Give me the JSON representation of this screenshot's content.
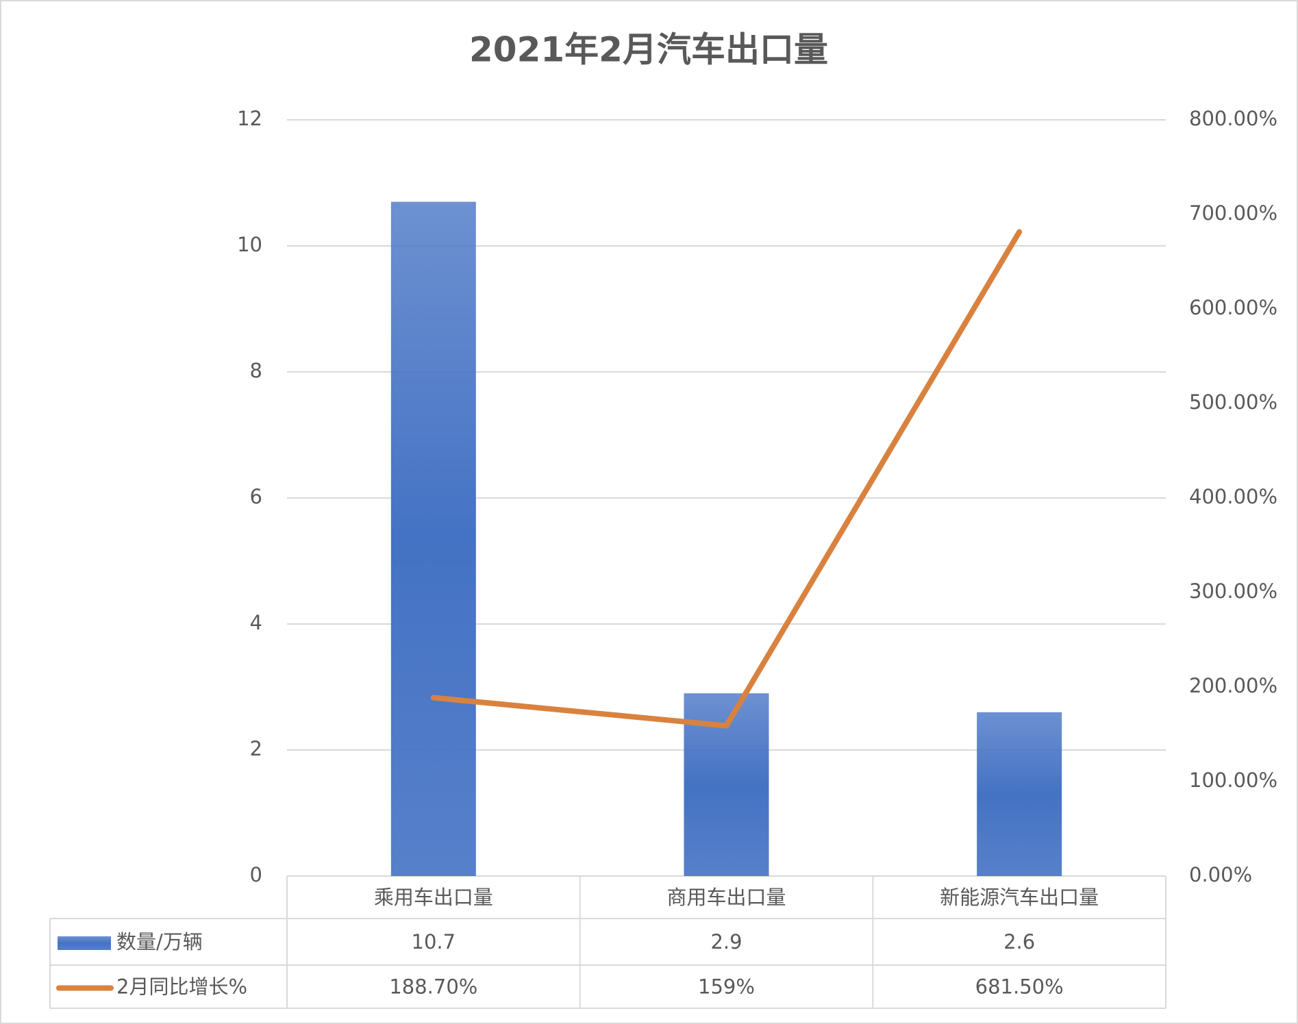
{
  "chart_data": {
    "type": "bar",
    "title": "2021年2月汽车出口量",
    "categories": [
      "乘用车出口量",
      "商用车出口量",
      "新能源汽车出口量"
    ],
    "series": [
      {
        "name": "数量/万辆",
        "type": "bar",
        "color": "#4472c4",
        "values": [
          10.7,
          2.9,
          2.6
        ]
      },
      {
        "name": "2月同比增长%",
        "type": "line",
        "axis": "y2",
        "color": "#d9823f",
        "values": [
          188.7,
          159,
          681.5
        ],
        "value_labels": [
          "188.70%",
          "159%",
          "681.50%"
        ]
      }
    ],
    "ylim": [
      0,
      12
    ],
    "yticks": [
      0,
      2,
      4,
      6,
      8,
      10,
      12
    ],
    "y2lim": [
      0,
      800
    ],
    "y2ticks": [
      {
        "value": 0,
        "label": "0.00%"
      },
      {
        "value": 100,
        "label": "100.00%"
      },
      {
        "value": 200,
        "label": "200.00%"
      },
      {
        "value": 300,
        "label": "300.00%"
      },
      {
        "value": 400,
        "label": "400.00%"
      },
      {
        "value": 500,
        "label": "500.00%"
      },
      {
        "value": 600,
        "label": "600.00%"
      },
      {
        "value": 700,
        "label": "700.00%"
      },
      {
        "value": 800,
        "label": "800.00%"
      }
    ],
    "grid": true,
    "data_table": true
  }
}
